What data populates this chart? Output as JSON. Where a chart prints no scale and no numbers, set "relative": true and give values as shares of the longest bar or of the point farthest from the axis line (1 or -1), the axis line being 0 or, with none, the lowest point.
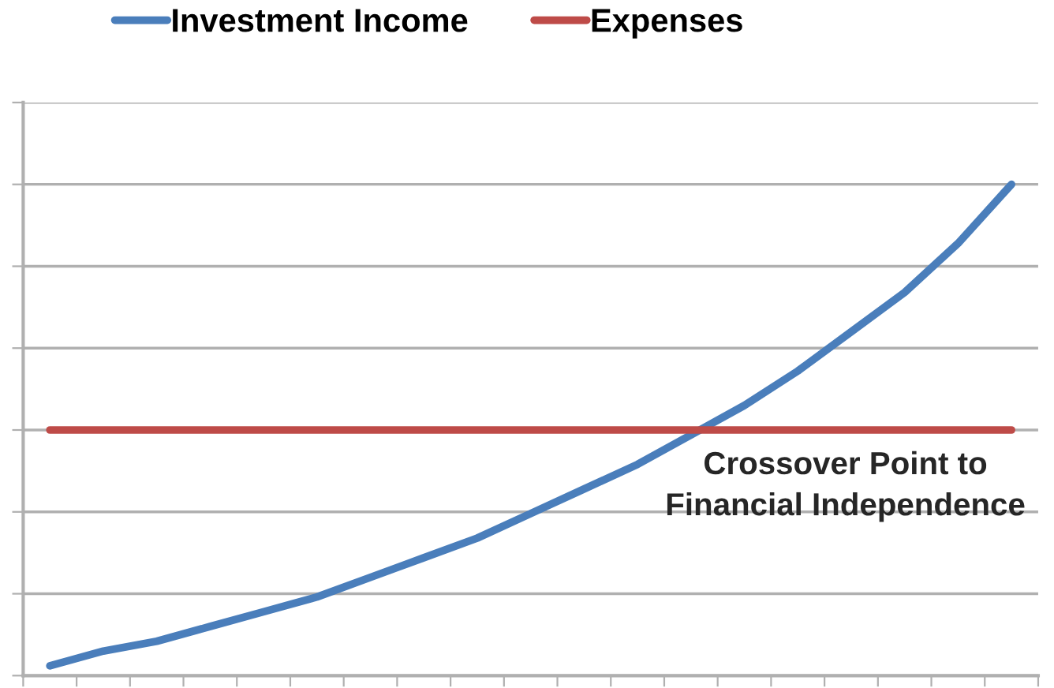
{
  "chart_data": {
    "type": "line",
    "relative": true,
    "categories": [
      null,
      null,
      null,
      null,
      null,
      null,
      null,
      null,
      null,
      null,
      null,
      null,
      null,
      null,
      null,
      null,
      null,
      null,
      null
    ],
    "series": [
      {
        "name": "Investment Income",
        "color": "#4a7ebb",
        "values": [
          0.02,
          0.05,
          0.07,
          0.1,
          0.13,
          0.16,
          0.2,
          0.24,
          0.28,
          0.33,
          0.38,
          0.43,
          0.49,
          0.55,
          0.62,
          0.7,
          0.78,
          0.88,
          1.0
        ]
      },
      {
        "name": "Expenses",
        "color": "#be4b48",
        "values": [
          0.5,
          0.5,
          0.5,
          0.5,
          0.5,
          0.5,
          0.5,
          0.5,
          0.5,
          0.5,
          0.5,
          0.5,
          0.5,
          0.5,
          0.5,
          0.5,
          0.5,
          0.5,
          0.5
        ]
      }
    ],
    "annotations": [
      "Crossover Point to\nFinancial Independence"
    ],
    "grid": "y",
    "legend": "top",
    "tick_labels": false,
    "marker": "none",
    "line_style": "solid"
  }
}
